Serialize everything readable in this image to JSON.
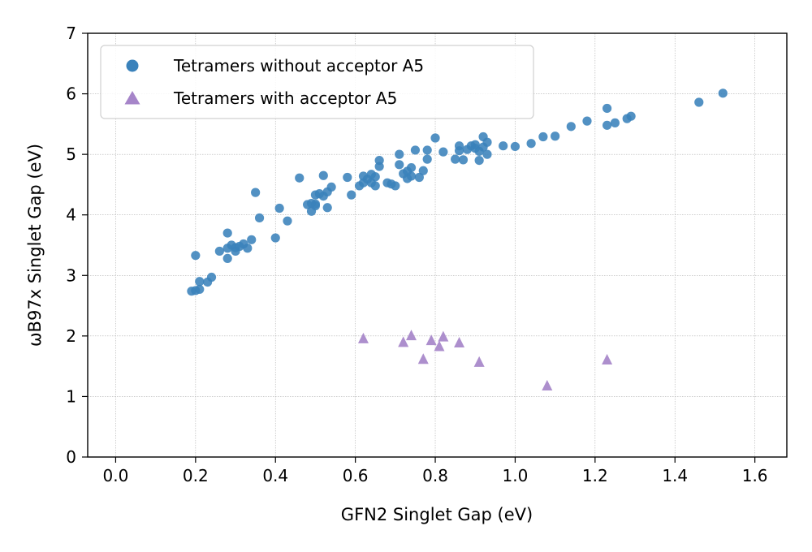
{
  "chart_data": {
    "type": "scatter",
    "xlabel": "GFN2 Singlet Gap (eV)",
    "ylabel": "ωB97x Singlet Gap (eV)",
    "xlim": [
      -0.07,
      1.68
    ],
    "ylim": [
      0,
      7
    ],
    "xticks": [
      "0.0",
      "0.2",
      "0.4",
      "0.6",
      "0.8",
      "1.0",
      "1.2",
      "1.4",
      "1.6"
    ],
    "yticks": [
      "0",
      "1",
      "2",
      "3",
      "4",
      "5",
      "6",
      "7"
    ],
    "grid": true,
    "legend_position": "top-left",
    "series": [
      {
        "name": "Tetramers without acceptor A5",
        "marker": "circle",
        "color": "#3a82bb",
        "points": [
          [
            0.19,
            2.74
          ],
          [
            0.2,
            2.75
          ],
          [
            0.21,
            2.77
          ],
          [
            0.21,
            2.9
          ],
          [
            0.23,
            2.89
          ],
          [
            0.24,
            2.97
          ],
          [
            0.2,
            3.33
          ],
          [
            0.26,
            3.4
          ],
          [
            0.28,
            3.45
          ],
          [
            0.29,
            3.5
          ],
          [
            0.3,
            3.46
          ],
          [
            0.31,
            3.48
          ],
          [
            0.32,
            3.52
          ],
          [
            0.33,
            3.45
          ],
          [
            0.34,
            3.59
          ],
          [
            0.28,
            3.28
          ],
          [
            0.28,
            3.7
          ],
          [
            0.3,
            3.4
          ],
          [
            0.35,
            4.37
          ],
          [
            0.36,
            3.95
          ],
          [
            0.4,
            3.62
          ],
          [
            0.41,
            4.11
          ],
          [
            0.43,
            3.9
          ],
          [
            0.46,
            4.61
          ],
          [
            0.48,
            4.17
          ],
          [
            0.49,
            4.06
          ],
          [
            0.5,
            4.33
          ],
          [
            0.5,
            4.18
          ],
          [
            0.51,
            4.35
          ],
          [
            0.52,
            4.31
          ],
          [
            0.52,
            4.65
          ],
          [
            0.53,
            4.12
          ],
          [
            0.53,
            4.38
          ],
          [
            0.54,
            4.46
          ],
          [
            0.49,
            4.19
          ],
          [
            0.5,
            4.15
          ],
          [
            0.58,
            4.62
          ],
          [
            0.59,
            4.33
          ],
          [
            0.61,
            4.48
          ],
          [
            0.62,
            4.53
          ],
          [
            0.62,
            4.64
          ],
          [
            0.63,
            4.59
          ],
          [
            0.64,
            4.53
          ],
          [
            0.64,
            4.67
          ],
          [
            0.65,
            4.48
          ],
          [
            0.65,
            4.63
          ],
          [
            0.66,
            4.8
          ],
          [
            0.66,
            4.9
          ],
          [
            0.68,
            4.53
          ],
          [
            0.69,
            4.51
          ],
          [
            0.7,
            4.48
          ],
          [
            0.71,
            4.83
          ],
          [
            0.71,
            5.0
          ],
          [
            0.72,
            4.68
          ],
          [
            0.73,
            4.6
          ],
          [
            0.73,
            4.72
          ],
          [
            0.74,
            4.64
          ],
          [
            0.74,
            4.78
          ],
          [
            0.75,
            5.07
          ],
          [
            0.76,
            4.62
          ],
          [
            0.77,
            4.73
          ],
          [
            0.78,
            4.92
          ],
          [
            0.78,
            5.07
          ],
          [
            0.8,
            5.27
          ],
          [
            0.82,
            5.04
          ],
          [
            0.85,
            4.92
          ],
          [
            0.86,
            5.06
          ],
          [
            0.86,
            5.14
          ],
          [
            0.87,
            4.91
          ],
          [
            0.88,
            5.08
          ],
          [
            0.89,
            5.14
          ],
          [
            0.9,
            5.1
          ],
          [
            0.9,
            5.16
          ],
          [
            0.91,
            5.05
          ],
          [
            0.91,
            4.9
          ],
          [
            0.92,
            5.12
          ],
          [
            0.92,
            5.29
          ],
          [
            0.93,
            5.2
          ],
          [
            0.93,
            5.0
          ],
          [
            0.97,
            5.14
          ],
          [
            1.0,
            5.13
          ],
          [
            1.04,
            5.18
          ],
          [
            1.07,
            5.29
          ],
          [
            1.1,
            5.3
          ],
          [
            1.14,
            5.46
          ],
          [
            1.18,
            5.55
          ],
          [
            1.23,
            5.48
          ],
          [
            1.23,
            5.76
          ],
          [
            1.25,
            5.52
          ],
          [
            1.28,
            5.59
          ],
          [
            1.29,
            5.63
          ],
          [
            1.46,
            5.86
          ],
          [
            1.52,
            6.01
          ]
        ]
      },
      {
        "name": "Tetramers with acceptor A5",
        "marker": "triangle",
        "color": "#a685c9",
        "points": [
          [
            0.62,
            1.96
          ],
          [
            0.72,
            1.9
          ],
          [
            0.74,
            2.01
          ],
          [
            0.77,
            1.62
          ],
          [
            0.79,
            1.93
          ],
          [
            0.81,
            1.83
          ],
          [
            0.82,
            1.99
          ],
          [
            0.86,
            1.89
          ],
          [
            0.91,
            1.57
          ],
          [
            1.08,
            1.18
          ],
          [
            1.23,
            1.61
          ]
        ]
      }
    ]
  }
}
